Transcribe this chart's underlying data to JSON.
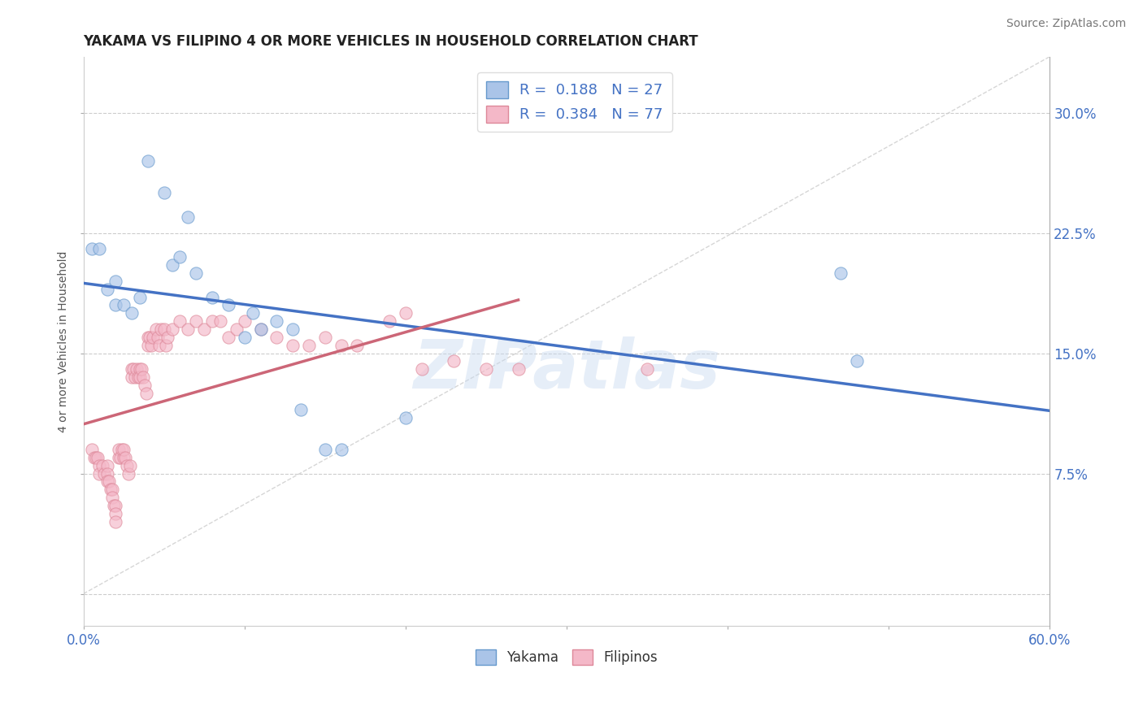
{
  "title": "YAKAMA VS FILIPINO 4 OR MORE VEHICLES IN HOUSEHOLD CORRELATION CHART",
  "source": "Source: ZipAtlas.com",
  "ylabel": "4 or more Vehicles in Household",
  "xlim": [
    0.0,
    0.6
  ],
  "ylim": [
    -0.02,
    0.335
  ],
  "xticks": [
    0.0,
    0.1,
    0.2,
    0.3,
    0.4,
    0.5,
    0.6
  ],
  "xticklabels": [
    "0.0%",
    "",
    "",
    "",
    "",
    "",
    "60.0%"
  ],
  "yticks": [
    0.0,
    0.075,
    0.15,
    0.225,
    0.3
  ],
  "yticklabels_right": [
    "",
    "7.5%",
    "15.0%",
    "22.5%",
    "30.0%"
  ],
  "watermark": "ZIPatlas",
  "yakama_color": "#aac4e8",
  "filipinos_color": "#f4b8c8",
  "yakama_edge_color": "#6699cc",
  "filipinos_edge_color": "#dd8899",
  "yakama_line_color": "#4472c4",
  "filipinos_line_color": "#cc6677",
  "scatter_alpha": 0.65,
  "scatter_size": 120,
  "grid_color": "#cccccc",
  "background_color": "#ffffff",
  "title_fontsize": 12,
  "yakama_x": [
    0.005,
    0.01,
    0.015,
    0.02,
    0.02,
    0.025,
    0.03,
    0.035,
    0.04,
    0.05,
    0.055,
    0.06,
    0.065,
    0.07,
    0.08,
    0.09,
    0.1,
    0.105,
    0.11,
    0.12,
    0.13,
    0.135,
    0.15,
    0.16,
    0.2,
    0.47,
    0.48
  ],
  "yakama_y": [
    0.215,
    0.215,
    0.19,
    0.195,
    0.18,
    0.18,
    0.175,
    0.185,
    0.27,
    0.25,
    0.205,
    0.21,
    0.235,
    0.2,
    0.185,
    0.18,
    0.16,
    0.175,
    0.165,
    0.17,
    0.165,
    0.115,
    0.09,
    0.09,
    0.11,
    0.2,
    0.145
  ],
  "filipinos_x": [
    0.005,
    0.007,
    0.008,
    0.009,
    0.01,
    0.01,
    0.012,
    0.013,
    0.015,
    0.015,
    0.015,
    0.016,
    0.017,
    0.018,
    0.018,
    0.019,
    0.02,
    0.02,
    0.02,
    0.022,
    0.022,
    0.023,
    0.024,
    0.025,
    0.025,
    0.026,
    0.027,
    0.028,
    0.029,
    0.03,
    0.03,
    0.031,
    0.032,
    0.033,
    0.034,
    0.035,
    0.035,
    0.036,
    0.037,
    0.038,
    0.039,
    0.04,
    0.04,
    0.041,
    0.042,
    0.043,
    0.045,
    0.046,
    0.047,
    0.048,
    0.05,
    0.051,
    0.052,
    0.055,
    0.06,
    0.065,
    0.07,
    0.075,
    0.08,
    0.085,
    0.09,
    0.095,
    0.1,
    0.11,
    0.12,
    0.13,
    0.14,
    0.15,
    0.16,
    0.17,
    0.19,
    0.2,
    0.21,
    0.23,
    0.25,
    0.27,
    0.35
  ],
  "filipinos_y": [
    0.09,
    0.085,
    0.085,
    0.085,
    0.08,
    0.075,
    0.08,
    0.075,
    0.08,
    0.075,
    0.07,
    0.07,
    0.065,
    0.065,
    0.06,
    0.055,
    0.055,
    0.05,
    0.045,
    0.085,
    0.09,
    0.085,
    0.09,
    0.085,
    0.09,
    0.085,
    0.08,
    0.075,
    0.08,
    0.14,
    0.135,
    0.14,
    0.135,
    0.14,
    0.135,
    0.14,
    0.135,
    0.14,
    0.135,
    0.13,
    0.125,
    0.16,
    0.155,
    0.16,
    0.155,
    0.16,
    0.165,
    0.16,
    0.155,
    0.165,
    0.165,
    0.155,
    0.16,
    0.165,
    0.17,
    0.165,
    0.17,
    0.165,
    0.17,
    0.17,
    0.16,
    0.165,
    0.17,
    0.165,
    0.16,
    0.155,
    0.155,
    0.16,
    0.155,
    0.155,
    0.17,
    0.175,
    0.14,
    0.145,
    0.14,
    0.14,
    0.14
  ]
}
